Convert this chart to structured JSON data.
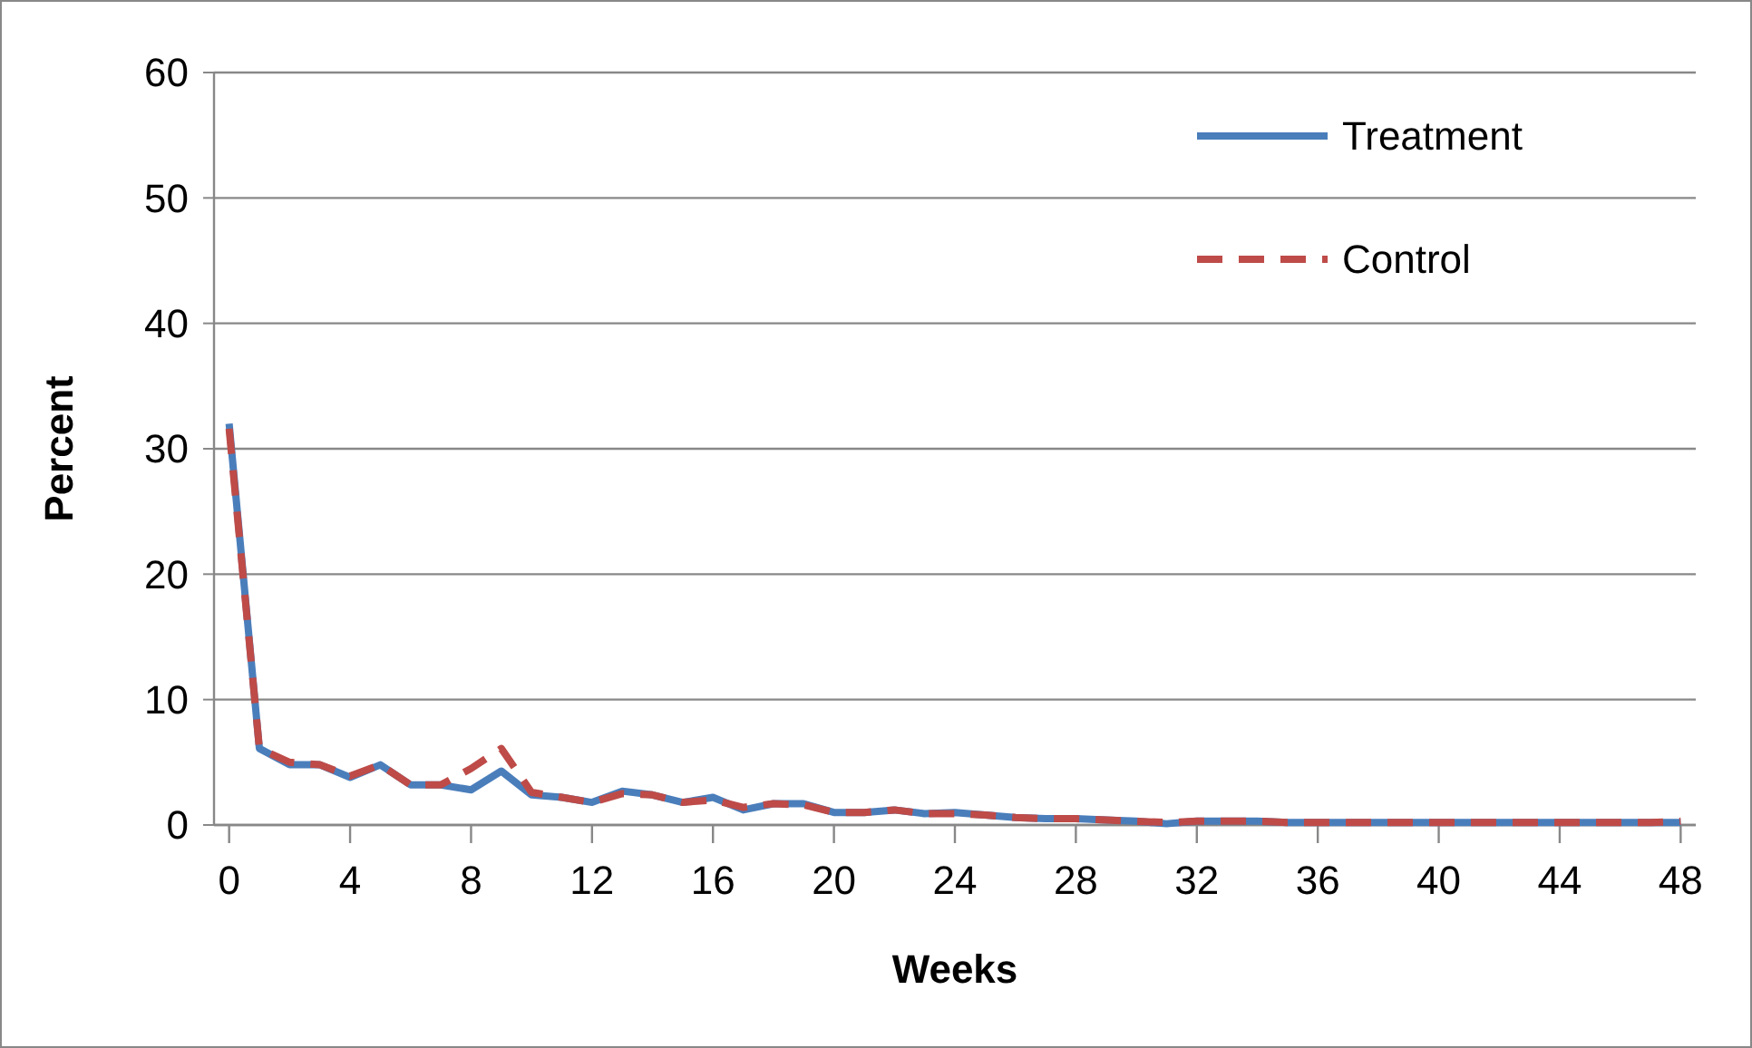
{
  "chart_data": {
    "type": "line",
    "xlabel": "Weeks",
    "ylabel": "Percent",
    "x": [
      0,
      1,
      2,
      3,
      4,
      5,
      6,
      7,
      8,
      9,
      10,
      11,
      12,
      13,
      14,
      15,
      16,
      17,
      18,
      19,
      20,
      21,
      22,
      23,
      24,
      25,
      26,
      27,
      28,
      29,
      30,
      31,
      32,
      33,
      34,
      35,
      36,
      37,
      38,
      39,
      40,
      41,
      42,
      43,
      44,
      45,
      46,
      47,
      48
    ],
    "xlim": [
      -0.5,
      48.5
    ],
    "xticks": [
      0,
      4,
      8,
      12,
      16,
      20,
      24,
      28,
      32,
      36,
      40,
      44,
      48
    ],
    "series": [
      {
        "name": "Treatment",
        "color": "#4a7ebb",
        "line_style": "solid",
        "values": [
          32,
          6.1,
          4.8,
          4.8,
          3.8,
          4.8,
          3.2,
          3.2,
          2.8,
          4.3,
          2.4,
          2.2,
          1.8,
          2.7,
          2.4,
          1.8,
          2.2,
          1.2,
          1.7,
          1.7,
          1.0,
          1.0,
          1.2,
          0.9,
          1.0,
          0.8,
          0.6,
          0.5,
          0.5,
          0.4,
          0.3,
          0.1,
          0.3,
          0.3,
          0.3,
          0.2,
          0.2,
          0.2,
          0.2,
          0.2,
          0.2,
          0.2,
          0.2,
          0.2,
          0.2,
          0.2,
          0.2,
          0.2,
          0.2
        ]
      },
      {
        "name": "Control",
        "color": "#be4b48",
        "line_style": "dashed",
        "values": [
          31.6,
          6.1,
          5.0,
          4.8,
          3.9,
          4.8,
          3.2,
          3.2,
          4.5,
          6.1,
          2.6,
          2.2,
          1.8,
          2.5,
          2.4,
          1.8,
          2.0,
          1.4,
          1.7,
          1.6,
          1.0,
          1.0,
          1.2,
          0.9,
          0.9,
          0.8,
          0.6,
          0.5,
          0.5,
          0.4,
          0.3,
          0.2,
          0.3,
          0.3,
          0.3,
          0.2,
          0.2,
          0.2,
          0.2,
          0.2,
          0.2,
          0.2,
          0.2,
          0.2,
          0.2,
          0.2,
          0.2,
          0.2,
          0.3
        ]
      }
    ],
    "ylim": [
      0,
      60
    ],
    "yticks": [
      0,
      10,
      20,
      30,
      40,
      50,
      60
    ],
    "grid": "y",
    "legend": "top right"
  }
}
